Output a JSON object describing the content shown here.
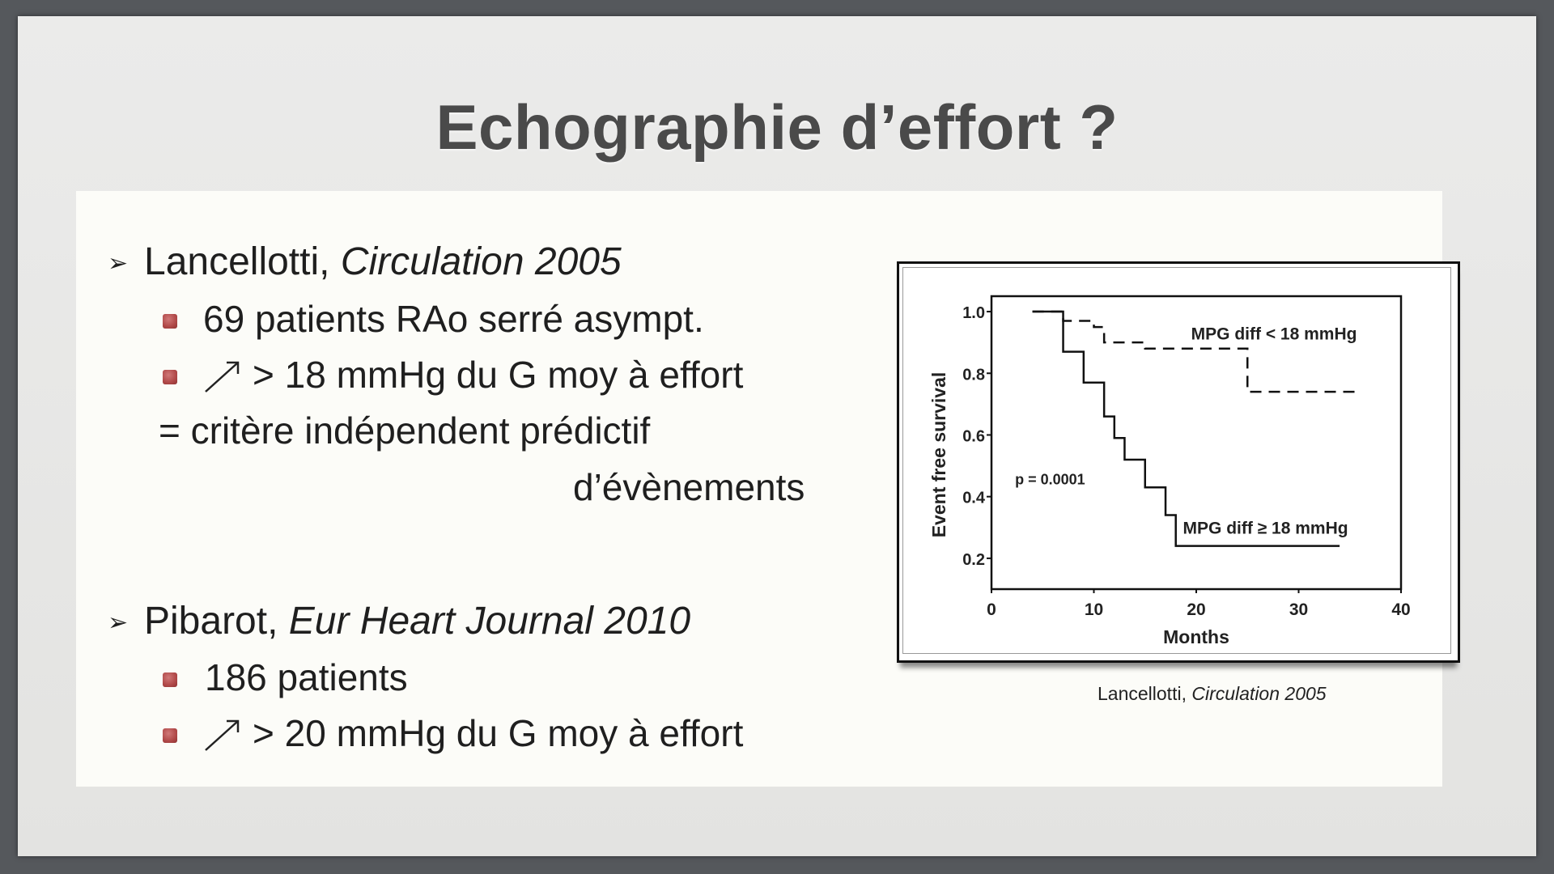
{
  "slide": {
    "title": "Echographie d’effort ?",
    "study1": {
      "author": "Lancellotti, ",
      "journal": "Circulation 2005",
      "bullet1": "69 patients RAo serré asympt.",
      "bullet2": "> 18 mmHg du G moy à effort",
      "conclusion_line1": "= critère indépendent prédictif",
      "conclusion_line2": "d’évènements"
    },
    "study2": {
      "author": "Pibarot, ",
      "journal": "Eur Heart Journal 2010",
      "bullet1": "186 patients",
      "bullet2": "> 20 mmHg du G moy à effort"
    },
    "arrow_symbol": "↗",
    "list_marker": "➢",
    "caption": {
      "author": "Lancellotti, ",
      "journal": "Circulation 2005"
    },
    "colors": {
      "background": "#55585c",
      "slide": "#e8e8e6",
      "panel": "#fcfcf8",
      "title": "#4a4a4a",
      "bullet": "#b04848"
    }
  },
  "chart_data": {
    "type": "line",
    "xlabel": "Months",
    "ylabel": "Event free survival",
    "xlim": [
      0,
      40
    ],
    "ylim": [
      0.1,
      1.05
    ],
    "x_ticks": [
      "0",
      "10",
      "20",
      "30",
      "40"
    ],
    "y_ticks": [
      "1.0",
      "0.8",
      "0.6",
      "0.4",
      "0.2"
    ],
    "annotation": "p = 0.0001",
    "series": [
      {
        "name": "MPG diff < 18 mmHg",
        "style": "dashed",
        "x": [
          4,
          7,
          10,
          11,
          15,
          25,
          36
        ],
        "y": [
          1.0,
          0.97,
          0.95,
          0.9,
          0.88,
          0.74,
          0.74
        ]
      },
      {
        "name": "MPG diff ≥ 18 mmHg",
        "style": "solid",
        "x": [
          4,
          7,
          9,
          11,
          12,
          13,
          15,
          17,
          18,
          34
        ],
        "y": [
          1.0,
          0.87,
          0.77,
          0.66,
          0.59,
          0.52,
          0.43,
          0.34,
          0.24,
          0.24
        ]
      }
    ]
  }
}
